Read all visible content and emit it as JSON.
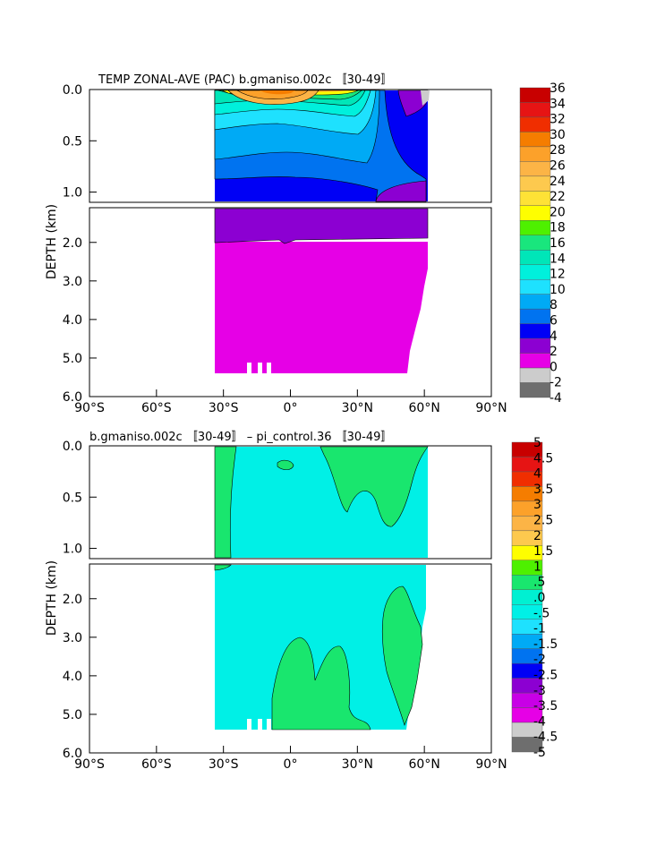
{
  "chart_data": [
    {
      "type": "heatmap",
      "title": "TEMP ZONAL-AVE (PAC) b.gmaniso.002c 〚30-49〛",
      "ylabel": "DEPTH (km)",
      "x_ticks": [
        "90°S",
        "60°S",
        "30°S",
        "0°",
        "30°N",
        "60°N",
        "90°N"
      ],
      "y_ticks_upper": [
        "0.0",
        "0.5",
        "1.0"
      ],
      "y_ticks_lower": [
        "2.0",
        "3.0",
        "4.0",
        "5.0",
        "6.0"
      ],
      "xlim": [
        -90,
        90
      ],
      "ylim": [
        6.0,
        0.0
      ],
      "colorbar_labels": [
        "36",
        "34",
        "32",
        "30",
        "28",
        "26",
        "24",
        "22",
        "20",
        "18",
        "16",
        "14",
        "12",
        "10",
        "8",
        "6",
        "4",
        "2",
        "0",
        "-2",
        "-4"
      ],
      "colorbar_colors": [
        "#c80000",
        "#e61414",
        "#f02e00",
        "#f57d00",
        "#fca12a",
        "#fcb446",
        "#fdc94e",
        "#fee236",
        "#fefe00",
        "#4ef000",
        "#19e67d",
        "#00e6b8",
        "#00f0dc",
        "#1ee1fe",
        "#00aaf5",
        "#0073f0",
        "#0000f5",
        "#8c00d2",
        "#e600e6",
        "#cccccc",
        "#6e6e6e"
      ]
    },
    {
      "type": "heatmap",
      "title": "b.gmaniso.002c 〚30-49〛 – pi_control.36 〚30-49〛",
      "ylabel": "DEPTH (km)",
      "x_ticks": [
        "90°S",
        "60°S",
        "30°S",
        "0°",
        "30°N",
        "60°N",
        "90°N"
      ],
      "y_ticks_upper": [
        "0.0",
        "0.5",
        "1.0"
      ],
      "y_ticks_lower": [
        "2.0",
        "3.0",
        "4.0",
        "5.0",
        "6.0"
      ],
      "xlim": [
        -90,
        90
      ],
      "ylim": [
        6.0,
        0.0
      ],
      "colorbar_labels": [
        "5",
        "4.5",
        "4",
        "3.5",
        "3",
        "2.5",
        "2",
        "1.5",
        "1",
        ".5",
        ".0",
        "-.5",
        "-1",
        "-1.5",
        "-2",
        "-2.5",
        "-3",
        "-3.5",
        "-4",
        "-4.5",
        "-5"
      ],
      "colorbar_colors": [
        "#c80000",
        "#e61414",
        "#f02e00",
        "#f57d00",
        "#fca12a",
        "#fcb446",
        "#fdc94e",
        "#fefe00",
        "#4ef000",
        "#19e66e",
        "#00f0d2",
        "#00f0e6",
        "#1ee1fe",
        "#00aaf5",
        "#0073f0",
        "#0000f5",
        "#8c00d2",
        "#c800e6",
        "#e600e6",
        "#cccccc",
        "#6e6e6e"
      ]
    }
  ]
}
